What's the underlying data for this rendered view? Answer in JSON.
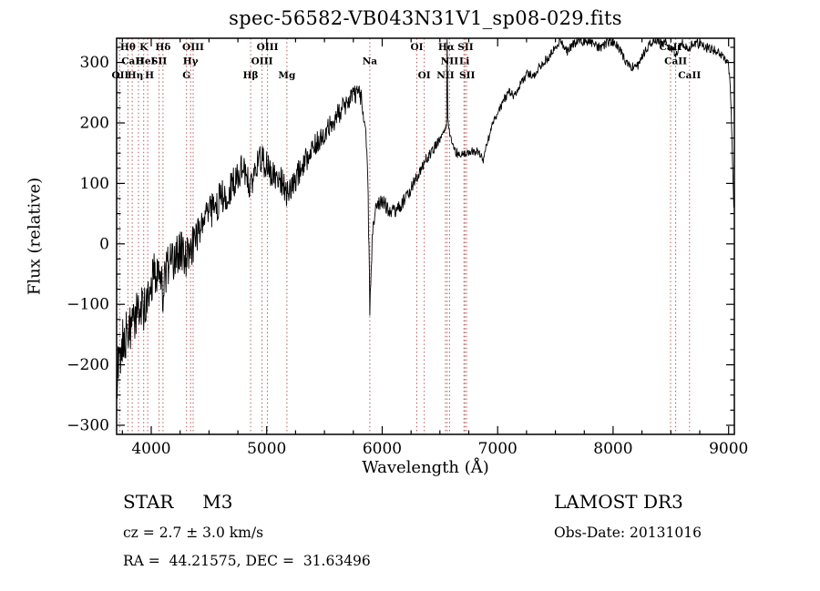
{
  "title": "spec-56582-VB043N31V1_sp08-029.fits",
  "footer": {
    "classification": "STAR     M3",
    "velocity": "cz = 2.7 ± 3.0 km/s",
    "coordinates": "RA =  44.21575, DEC =  31.63496",
    "survey": "LAMOST DR3",
    "obs_date": "Obs-Date: 20131016"
  },
  "chart_data": {
    "type": "line",
    "title": "spec-56582-VB043N31V1_sp08-029.fits",
    "xlabel": "Wavelength (Å)",
    "ylabel": "Flux (relative)",
    "xlim": [
      3700,
      9050
    ],
    "ylim": [
      -315,
      340
    ],
    "xticks": [
      4000,
      5000,
      6000,
      7000,
      8000,
      9000
    ],
    "yticks": [
      -300,
      -200,
      -100,
      0,
      100,
      200,
      300
    ],
    "grid": false,
    "legend": "none",
    "trace_color": "#000000",
    "feature_line_color": "#b25b5b",
    "feature_lines": [
      3727,
      3798,
      3835,
      3889,
      3934,
      3969,
      4068,
      4102,
      4305,
      4341,
      4363,
      4861,
      4959,
      5007,
      5175,
      5893,
      6300,
      6364,
      6548,
      6563,
      6583,
      6708,
      6717,
      6731,
      8498,
      8542,
      8662
    ],
    "features": [
      {
        "label": "Hθ",
        "x": 3798,
        "row": 0
      },
      {
        "label": "K",
        "x": 3934,
        "row": 0
      },
      {
        "label": "Hδ",
        "x": 4102,
        "row": 0
      },
      {
        "label": "OIII",
        "x": 4363,
        "row": 0
      },
      {
        "label": "OIII",
        "x": 5007,
        "row": 0
      },
      {
        "label": "OI",
        "x": 6300,
        "row": 0
      },
      {
        "label": "Hα",
        "x": 6556,
        "row": 0
      },
      {
        "label": "SII",
        "x": 6722,
        "row": 0
      },
      {
        "label": "CaII",
        "x": 8498,
        "row": 0
      },
      {
        "label": "CaII",
        "x": 3840,
        "row": 1
      },
      {
        "label": "HeI",
        "x": 3950,
        "row": 1
      },
      {
        "label": "SII",
        "x": 4068,
        "row": 1
      },
      {
        "label": "Hγ",
        "x": 4341,
        "row": 1
      },
      {
        "label": "OIII",
        "x": 4959,
        "row": 1
      },
      {
        "label": "Na",
        "x": 5893,
        "row": 1
      },
      {
        "label": "NII",
        "x": 6583,
        "row": 1
      },
      {
        "label": "Li",
        "x": 6712,
        "row": 1
      },
      {
        "label": "CaII",
        "x": 8542,
        "row": 1
      },
      {
        "label": "OII",
        "x": 3727,
        "row": 2
      },
      {
        "label": "Hη",
        "x": 3862,
        "row": 2
      },
      {
        "label": "H",
        "x": 3985,
        "row": 2
      },
      {
        "label": "G",
        "x": 4305,
        "row": 2
      },
      {
        "label": "Hβ",
        "x": 4861,
        "row": 2
      },
      {
        "label": "Mg",
        "x": 5175,
        "row": 2
      },
      {
        "label": "OI",
        "x": 6364,
        "row": 2
      },
      {
        "label": "NII",
        "x": 6548,
        "row": 2
      },
      {
        "label": "SII",
        "x": 6736,
        "row": 2
      },
      {
        "label": "CaII",
        "x": 8662,
        "row": 2
      }
    ],
    "spectrum": [
      [
        3700,
        -230
      ],
      [
        3715,
        -195
      ],
      [
        3730,
        -185
      ],
      [
        3745,
        -160
      ],
      [
        3760,
        -150
      ],
      [
        3775,
        -160
      ],
      [
        3790,
        -140
      ],
      [
        3805,
        -135
      ],
      [
        3820,
        -145
      ],
      [
        3835,
        -128
      ],
      [
        3850,
        -135
      ],
      [
        3865,
        -120
      ],
      [
        3880,
        -118
      ],
      [
        3895,
        -100
      ],
      [
        3910,
        -95
      ],
      [
        3925,
        -105
      ],
      [
        3934,
        -115
      ],
      [
        3950,
        -92
      ],
      [
        3969,
        -105
      ],
      [
        3985,
        -75
      ],
      [
        4000,
        -62
      ],
      [
        4020,
        -50
      ],
      [
        4040,
        -45
      ],
      [
        4060,
        -52
      ],
      [
        4080,
        -60
      ],
      [
        4102,
        -82
      ],
      [
        4120,
        -52
      ],
      [
        4140,
        -38
      ],
      [
        4170,
        -30
      ],
      [
        4200,
        -26
      ],
      [
        4230,
        -15
      ],
      [
        4260,
        -8
      ],
      [
        4290,
        -22
      ],
      [
        4305,
        -28
      ],
      [
        4320,
        -12
      ],
      [
        4341,
        -18
      ],
      [
        4360,
        0
      ],
      [
        4380,
        12
      ],
      [
        4410,
        22
      ],
      [
        4440,
        32
      ],
      [
        4470,
        40
      ],
      [
        4500,
        48
      ],
      [
        4540,
        58
      ],
      [
        4580,
        70
      ],
      [
        4620,
        78
      ],
      [
        4660,
        88
      ],
      [
        4700,
        96
      ],
      [
        4740,
        110
      ],
      [
        4780,
        120
      ],
      [
        4820,
        118
      ],
      [
        4840,
        108
      ],
      [
        4861,
        86
      ],
      [
        4880,
        116
      ],
      [
        4900,
        128
      ],
      [
        4925,
        136
      ],
      [
        4950,
        140
      ],
      [
        4975,
        134
      ],
      [
        5000,
        130
      ],
      [
        5030,
        120
      ],
      [
        5060,
        114
      ],
      [
        5090,
        110
      ],
      [
        5120,
        106
      ],
      [
        5150,
        95
      ],
      [
        5175,
        80
      ],
      [
        5200,
        88
      ],
      [
        5230,
        100
      ],
      [
        5260,
        112
      ],
      [
        5300,
        126
      ],
      [
        5350,
        142
      ],
      [
        5400,
        158
      ],
      [
        5450,
        170
      ],
      [
        5500,
        184
      ],
      [
        5550,
        196
      ],
      [
        5600,
        210
      ],
      [
        5650,
        222
      ],
      [
        5700,
        236
      ],
      [
        5750,
        246
      ],
      [
        5790,
        250
      ],
      [
        5820,
        240
      ],
      [
        5850,
        205
      ],
      [
        5875,
        120
      ],
      [
        5893,
        -108
      ],
      [
        5905,
        -45
      ],
      [
        5918,
        25
      ],
      [
        5935,
        52
      ],
      [
        5955,
        64
      ],
      [
        5980,
        70
      ],
      [
        6010,
        68
      ],
      [
        6040,
        60
      ],
      [
        6070,
        56
      ],
      [
        6100,
        54
      ],
      [
        6140,
        60
      ],
      [
        6180,
        70
      ],
      [
        6220,
        82
      ],
      [
        6260,
        96
      ],
      [
        6300,
        112
      ],
      [
        6340,
        126
      ],
      [
        6380,
        140
      ],
      [
        6420,
        150
      ],
      [
        6460,
        162
      ],
      [
        6500,
        174
      ],
      [
        6530,
        184
      ],
      [
        6550,
        192
      ],
      [
        6558,
        198
      ],
      [
        6563,
        335
      ],
      [
        6568,
        205
      ],
      [
        6585,
        182
      ],
      [
        6610,
        165
      ],
      [
        6640,
        152
      ],
      [
        6670,
        146
      ],
      [
        6700,
        146
      ],
      [
        6730,
        150
      ],
      [
        6760,
        150
      ],
      [
        6790,
        154
      ],
      [
        6820,
        152
      ],
      [
        6850,
        146
      ],
      [
        6875,
        138
      ],
      [
        6900,
        162
      ],
      [
        6940,
        188
      ],
      [
        6980,
        208
      ],
      [
        7020,
        222
      ],
      [
        7060,
        240
      ],
      [
        7100,
        254
      ],
      [
        7140,
        242
      ],
      [
        7180,
        258
      ],
      [
        7220,
        272
      ],
      [
        7260,
        284
      ],
      [
        7300,
        276
      ],
      [
        7350,
        288
      ],
      [
        7400,
        300
      ],
      [
        7450,
        312
      ],
      [
        7500,
        326
      ],
      [
        7550,
        334
      ],
      [
        7600,
        318
      ],
      [
        7650,
        330
      ],
      [
        7700,
        336
      ],
      [
        7750,
        332
      ],
      [
        7800,
        336
      ],
      [
        7850,
        328
      ],
      [
        7900,
        324
      ],
      [
        7950,
        332
      ],
      [
        8000,
        336
      ],
      [
        8050,
        324
      ],
      [
        8100,
        305
      ],
      [
        8150,
        294
      ],
      [
        8200,
        290
      ],
      [
        8250,
        308
      ],
      [
        8300,
        326
      ],
      [
        8350,
        334
      ],
      [
        8400,
        336
      ],
      [
        8450,
        332
      ],
      [
        8500,
        324
      ],
      [
        8542,
        316
      ],
      [
        8600,
        332
      ],
      [
        8662,
        324
      ],
      [
        8700,
        334
      ],
      [
        8750,
        330
      ],
      [
        8800,
        326
      ],
      [
        8850,
        322
      ],
      [
        8900,
        318
      ],
      [
        8950,
        310
      ],
      [
        9000,
        298
      ],
      [
        9015,
        262
      ],
      [
        9030,
        170
      ],
      [
        9045,
        60
      ]
    ]
  }
}
